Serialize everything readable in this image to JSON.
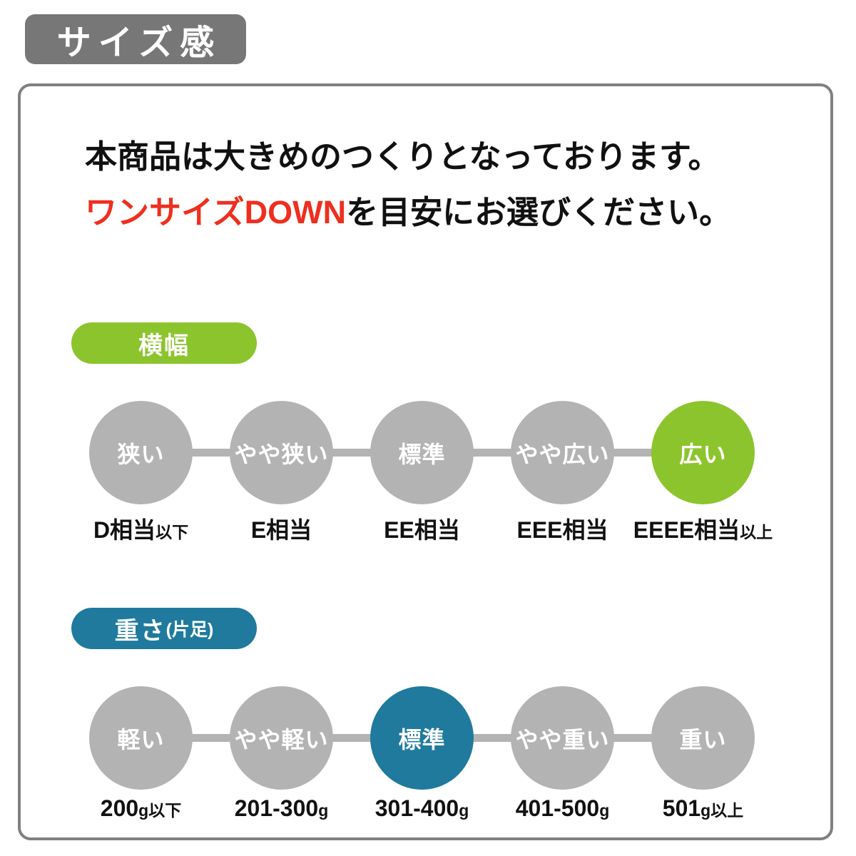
{
  "title_badge": "サイズ感",
  "description": {
    "line1": "本商品は大きめのつくりとなっております。",
    "line2_highlight": "ワンサイズDOWN",
    "line2_rest": "を目安にお選びください。"
  },
  "sections": [
    {
      "name": "width",
      "badge": {
        "label": "横幅",
        "suffix": ""
      },
      "accent_color": "#8cc42d",
      "active_index": 4,
      "scale": [
        {
          "label": "狭い",
          "active": false
        },
        {
          "label": "やや狭い",
          "active": false
        },
        {
          "label": "標準",
          "active": false
        },
        {
          "label": "やや広い",
          "active": false
        },
        {
          "label": "広い",
          "active": true
        }
      ],
      "value_labels": [
        {
          "main": "D相当",
          "suffix": "以下"
        },
        {
          "main": "E相当",
          "suffix": ""
        },
        {
          "main": "EE相当",
          "suffix": ""
        },
        {
          "main": "EEE相当",
          "suffix": ""
        },
        {
          "main": "EEEE相当",
          "suffix": "以上"
        }
      ]
    },
    {
      "name": "weight",
      "badge": {
        "label": "重さ",
        "suffix": "(片足)"
      },
      "accent_color": "#1f7a9e",
      "active_index": 2,
      "scale": [
        {
          "label": "軽い",
          "active": false
        },
        {
          "label": "やや軽い",
          "active": false
        },
        {
          "label": "標準",
          "active": true
        },
        {
          "label": "やや重い",
          "active": false
        },
        {
          "label": "重い",
          "active": false
        }
      ],
      "value_labels": [
        {
          "main": "200",
          "suffix": "g以下"
        },
        {
          "main": "201-300",
          "suffix": "g"
        },
        {
          "main": "301-400",
          "suffix": "g"
        },
        {
          "main": "401-500",
          "suffix": "g"
        },
        {
          "main": "501",
          "suffix": "g以上"
        }
      ]
    }
  ],
  "colors": {
    "header_badge": "#777777",
    "panel_border": "#808080",
    "inactive_circle": "#b3b3b3",
    "connector": "#b3b3b3",
    "text": "#111111",
    "highlight_red": "#ee2f1f",
    "width_green": "#8cc42d",
    "weight_teal": "#1f7a9e"
  }
}
